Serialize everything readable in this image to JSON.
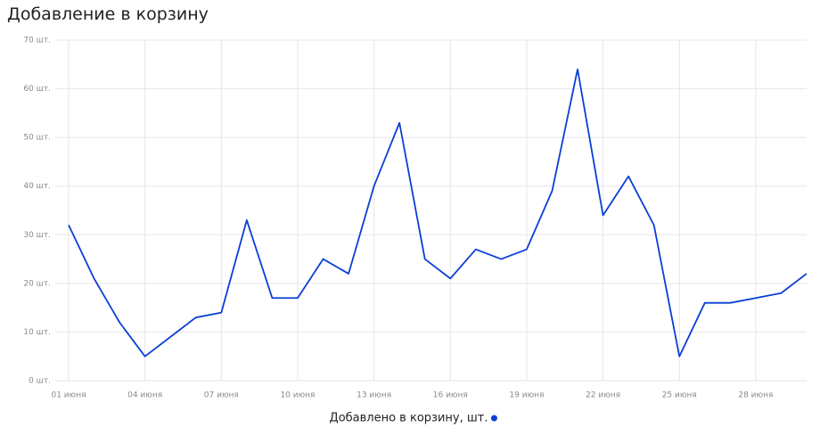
{
  "chart_data": {
    "type": "line",
    "title": "Добавление в корзину",
    "categories": [
      "01 июня",
      null,
      null,
      "04 июня",
      null,
      null,
      "07 июня",
      null,
      null,
      "10 июня",
      null,
      null,
      "13 июня",
      null,
      null,
      "16 июня",
      null,
      null,
      "19 июня",
      null,
      null,
      "22 июня",
      null,
      null,
      "25 июня",
      null,
      null,
      "28 июня",
      null,
      null
    ],
    "series": [
      {
        "name": "Добавлено в корзину, шт.",
        "color": "#0a3fd6",
        "values": [
          32,
          21,
          12,
          5,
          9,
          13,
          14,
          33,
          17,
          17,
          25,
          22,
          40,
          53,
          25,
          21,
          27,
          25,
          27,
          39,
          64,
          34,
          42,
          32,
          5,
          16,
          16,
          17,
          18,
          22
        ]
      }
    ],
    "ylim": [
      0,
      70
    ],
    "yticks": [
      {
        "value": 0,
        "label": "0 шт."
      },
      {
        "value": 10,
        "label": "10 шт."
      },
      {
        "value": 20,
        "label": "20 шт."
      },
      {
        "value": 30,
        "label": "30 шт."
      },
      {
        "value": 40,
        "label": "40 шт."
      },
      {
        "value": 50,
        "label": "50 шт."
      },
      {
        "value": 60,
        "label": "60 шт."
      },
      {
        "value": 70,
        "label": "70 шт."
      }
    ],
    "grid": true
  }
}
